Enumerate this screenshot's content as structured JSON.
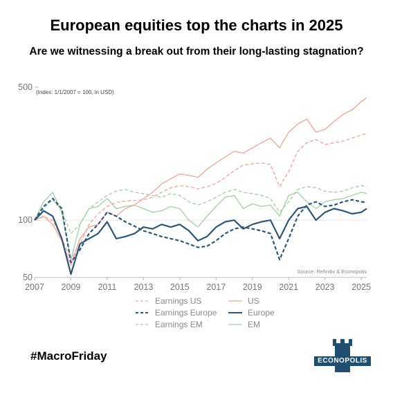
{
  "header": {
    "title": "European equities top the charts in 2025",
    "subtitle": "Are we witnessing a break out from their long-lasting stagnation?"
  },
  "footer": {
    "hashtag": "#MacroFriday",
    "logo_text": "ECONOPOLIS"
  },
  "chart_data": {
    "type": "line",
    "title": "European equities top the charts in 2025",
    "subtitle": "Are we witnessing a break out from their long-lasting stagnation?",
    "note": "(Index: 1/1/2007 = 100, in USD)",
    "source": "Source: Refinitiv & Econopolis",
    "y_scale": "log",
    "ylim": [
      50,
      500
    ],
    "y_ticks": [
      50,
      100,
      500
    ],
    "y_tick_labels": [
      "50",
      "100",
      "500"
    ],
    "xlim": [
      2007,
      2025.3
    ],
    "x_ticks": [
      2007,
      2009,
      2011,
      2013,
      2015,
      2017,
      2019,
      2021,
      2023,
      2025
    ],
    "x_tick_labels": [
      "2007",
      "2009",
      "2011",
      "2013",
      "2015",
      "2017",
      "2019",
      "2021",
      "2023",
      "2025"
    ],
    "grid": false,
    "legend_position": "bottom",
    "colors": {
      "us": "#f0a8a0",
      "europe": "#2c5677",
      "em": "#a9cfa9"
    },
    "x": [
      2007.0,
      2007.5,
      2008.0,
      2008.5,
      2009.0,
      2009.5,
      2010.0,
      2010.5,
      2011.0,
      2011.5,
      2012.0,
      2012.5,
      2013.0,
      2013.5,
      2014.0,
      2014.5,
      2015.0,
      2015.5,
      2016.0,
      2016.5,
      2017.0,
      2017.5,
      2018.0,
      2018.5,
      2019.0,
      2019.5,
      2020.0,
      2020.5,
      2021.0,
      2021.5,
      2022.0,
      2022.5,
      2023.0,
      2023.5,
      2024.0,
      2024.5,
      2025.0,
      2025.3
    ],
    "series": [
      {
        "name": "Earnings US",
        "style": "dashed",
        "color": "#f0a8a0",
        "values": [
          100,
          104,
          100,
          80,
          62,
          75,
          95,
          108,
          118,
          124,
          126,
          127,
          128,
          132,
          140,
          148,
          152,
          150,
          146,
          150,
          156,
          168,
          182,
          195,
          198,
          200,
          196,
          150,
          180,
          230,
          255,
          265,
          250,
          255,
          260,
          270,
          280,
          285
        ]
      },
      {
        "name": "US",
        "style": "solid",
        "color": "#f0a8a0",
        "values": [
          100,
          105,
          95,
          78,
          58,
          80,
          92,
          95,
          110,
          105,
          115,
          120,
          130,
          140,
          155,
          165,
          175,
          172,
          168,
          185,
          200,
          215,
          230,
          225,
          240,
          255,
          270,
          240,
          290,
          320,
          340,
          290,
          300,
          330,
          360,
          380,
          420,
          440
        ]
      },
      {
        "name": "Earnings Europe",
        "style": "dashed",
        "color": "#2c5677",
        "values": [
          100,
          118,
          130,
          115,
          60,
          70,
          85,
          95,
          110,
          105,
          98,
          93,
          88,
          85,
          82,
          80,
          78,
          75,
          72,
          73,
          78,
          85,
          90,
          92,
          90,
          88,
          85,
          62,
          80,
          105,
          120,
          125,
          118,
          120,
          125,
          128,
          125,
          124
        ]
      },
      {
        "name": "Europe",
        "style": "solid",
        "color": "#2c5677",
        "values": [
          100,
          112,
          105,
          80,
          52,
          75,
          80,
          85,
          98,
          80,
          82,
          85,
          92,
          90,
          95,
          92,
          95,
          88,
          78,
          82,
          92,
          98,
          100,
          90,
          95,
          98,
          100,
          80,
          100,
          115,
          118,
          100,
          110,
          115,
          112,
          108,
          110,
          115
        ]
      },
      {
        "name": "Earnings EM",
        "style": "dashed",
        "color": "#a9cfa9",
        "values": [
          100,
          115,
          128,
          112,
          85,
          95,
          115,
          125,
          135,
          142,
          145,
          140,
          138,
          135,
          132,
          138,
          135,
          125,
          120,
          125,
          132,
          140,
          145,
          140,
          138,
          135,
          130,
          110,
          125,
          145,
          150,
          148,
          142,
          140,
          142,
          148,
          152,
          150
        ]
      },
      {
        "name": "EM",
        "style": "solid",
        "color": "#a9cfa9",
        "values": [
          100,
          125,
          140,
          110,
          62,
          95,
          115,
          118,
          130,
          115,
          118,
          120,
          115,
          110,
          112,
          118,
          115,
          100,
          92,
          105,
          118,
          132,
          135,
          115,
          122,
          118,
          120,
          105,
          135,
          140,
          125,
          115,
          125,
          128,
          130,
          135,
          140,
          138
        ]
      }
    ]
  }
}
